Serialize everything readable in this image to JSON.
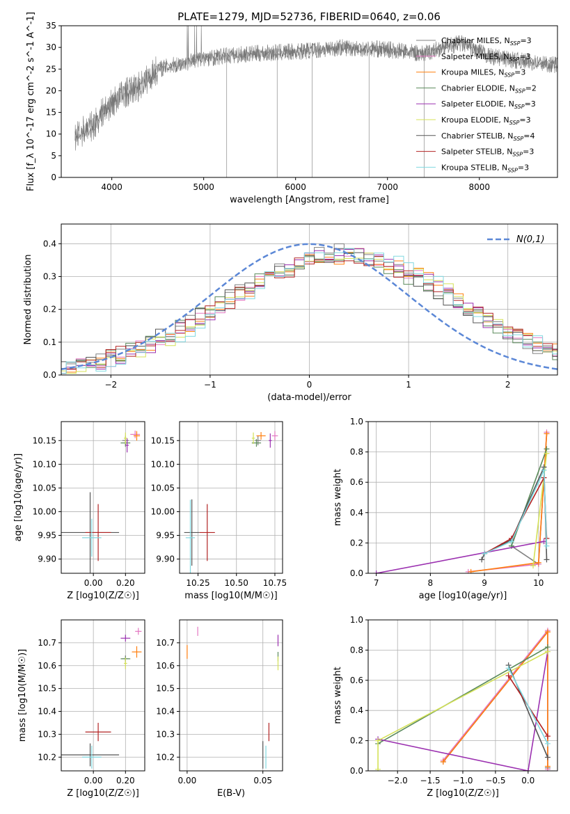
{
  "colors": {
    "Chabrier MILES": "#808080",
    "Salpeter MILES": "#e377c2",
    "Kroupa MILES": "#ff7f0e",
    "Chabrier ELODIE": "#5a8a5a",
    "Salpeter ELODIE": "#9b30b0",
    "Kroupa ELODIE": "#d4e157",
    "Chabrier STELIB": "#555555",
    "Salpeter STELIB": "#b22222",
    "Kroupa STELIB": "#80d8e0"
  },
  "chart_data": [
    {
      "id": "spectrum",
      "type": "line",
      "title": "PLATE=1279, MJD=52736, FIBERID=0640, z=0.06",
      "xlabel": "wavelength [Angstrom, rest frame]",
      "ylabel": "Flux [f_λ 10^-17 erg cm^-2 s^-1 A^-1]",
      "xlim": [
        3450,
        8850
      ],
      "ylim": [
        0,
        35
      ],
      "xticks": [
        4000,
        5000,
        6000,
        7000,
        8000
      ],
      "yticks": [
        0,
        5,
        10,
        15,
        20,
        25,
        30,
        35
      ],
      "grid": false,
      "legend_position": "right",
      "legend": [
        {
          "model": "Chabrier MILES",
          "n_ssp": "3"
        },
        {
          "model": "Salpeter MILES",
          "n_ssp": "3"
        },
        {
          "model": "Kroupa MILES",
          "n_ssp": "3"
        },
        {
          "model": "Chabrier ELODIE",
          "n_ssp": "2"
        },
        {
          "model": "Salpeter ELODIE",
          "n_ssp": "3"
        },
        {
          "model": "Kroupa ELODIE",
          "n_ssp": "3"
        },
        {
          "model": "Chabrier STELIB",
          "n_ssp": "4"
        },
        {
          "model": "Salpeter STELIB",
          "n_ssp": "3"
        },
        {
          "model": "Kroupa STELIB",
          "n_ssp": "3"
        }
      ],
      "continuum": [
        [
          3600,
          9
        ],
        [
          3700,
          11
        ],
        [
          3800,
          12
        ],
        [
          3900,
          15
        ],
        [
          4000,
          17
        ],
        [
          4100,
          19
        ],
        [
          4200,
          20
        ],
        [
          4300,
          21
        ],
        [
          4400,
          23
        ],
        [
          4500,
          25
        ],
        [
          4700,
          26
        ],
        [
          5000,
          27.5
        ],
        [
          5500,
          28.5
        ],
        [
          6000,
          29
        ],
        [
          6500,
          30
        ],
        [
          7000,
          29.5
        ],
        [
          7400,
          28.5
        ],
        [
          7600,
          30
        ],
        [
          7800,
          31
        ],
        [
          8100,
          28
        ],
        [
          8400,
          27
        ],
        [
          8800,
          26
        ]
      ],
      "telluric_drops": [
        5250,
        5800,
        6180,
        6800,
        7400
      ]
    },
    {
      "id": "residuals",
      "type": "histogram",
      "xlabel": "(data-model)/error",
      "ylabel": "Normed distribution",
      "xlim": [
        -2.5,
        2.5
      ],
      "ylim": [
        0,
        0.46
      ],
      "xticks": [
        -2,
        -1,
        0,
        1,
        2
      ],
      "yticks": [
        0.0,
        0.1,
        0.2,
        0.3,
        0.4
      ],
      "grid": true,
      "bin_width": 0.1,
      "gaussian_label": "N(0,1)",
      "gaussian_color": "#5b87d6",
      "peak_shift": 0.35,
      "peak_width": 1.15
    },
    {
      "id": "age_vs_Z",
      "type": "errorbar",
      "xlabel": "Z [log10(Z/Z☉)]",
      "ylabel": "age [log10(age/yr)]",
      "xlim": [
        -0.2,
        0.32
      ],
      "ylim": [
        9.87,
        10.19
      ],
      "xticks": [
        0.0,
        0.2
      ],
      "yticks": [
        9.9,
        9.95,
        10.0,
        10.05,
        10.1,
        10.15
      ],
      "grid": true,
      "points": [
        {
          "series": "Chabrier MILES",
          "x": 0.2,
          "y": 10.15,
          "xerr": 0.02,
          "yerr": 0.01
        },
        {
          "series": "Salpeter MILES",
          "x": 0.26,
          "y": 10.163,
          "xerr": 0.03,
          "yerr": 0.008
        },
        {
          "series": "Kroupa MILES",
          "x": 0.27,
          "y": 10.16,
          "xerr": 0.02,
          "yerr": 0.01
        },
        {
          "series": "Chabrier ELODIE",
          "x": 0.2,
          "y": 10.145,
          "xerr": 0.03,
          "yerr": 0.008
        },
        {
          "series": "Salpeter ELODIE",
          "x": 0.21,
          "y": 10.14,
          "xerr": 0.01,
          "yerr": 0.015
        },
        {
          "series": "Kroupa ELODIE",
          "x": 0.2,
          "y": 10.155,
          "xerr": 0.01,
          "yerr": 0.012
        },
        {
          "series": "Chabrier STELIB",
          "x": -0.02,
          "y": 9.956,
          "xerr": 0.18,
          "yerr": 0.085
        },
        {
          "series": "Salpeter STELIB",
          "x": 0.03,
          "y": 9.956,
          "xerr": 0.08,
          "yerr": 0.06
        },
        {
          "series": "Kroupa STELIB",
          "x": -0.01,
          "y": 9.945,
          "xerr": 0.06,
          "yerr": 0.04
        }
      ]
    },
    {
      "id": "age_vs_mass",
      "type": "errorbar",
      "xlabel": "mass [log10(M/M☉)]",
      "ylabel": "",
      "xlim": [
        10.13,
        10.8
      ],
      "ylim": [
        9.87,
        10.19
      ],
      "xticks": [
        10.25,
        10.5,
        10.75
      ],
      "yticks": [
        9.9,
        9.95,
        10.0,
        10.05,
        10.1,
        10.15
      ],
      "grid": true,
      "points": [
        {
          "series": "Chabrier MILES",
          "x": 10.64,
          "y": 10.15,
          "xerr": 0.02,
          "yerr": 0.01
        },
        {
          "series": "Salpeter MILES",
          "x": 10.75,
          "y": 10.16,
          "xerr": 0.02,
          "yerr": 0.01
        },
        {
          "series": "Kroupa MILES",
          "x": 10.66,
          "y": 10.16,
          "xerr": 0.03,
          "yerr": 0.008
        },
        {
          "series": "Chabrier ELODIE",
          "x": 10.63,
          "y": 10.145,
          "xerr": 0.03,
          "yerr": 0.008
        },
        {
          "series": "Salpeter ELODIE",
          "x": 10.72,
          "y": 10.15,
          "xerr": 0.01,
          "yerr": 0.015
        },
        {
          "series": "Kroupa ELODIE",
          "x": 10.61,
          "y": 10.155,
          "xerr": 0.01,
          "yerr": 0.012
        },
        {
          "series": "Chabrier STELIB",
          "x": 10.21,
          "y": 9.956,
          "xerr": 0.05,
          "yerr": 0.07
        },
        {
          "series": "Salpeter STELIB",
          "x": 10.31,
          "y": 9.956,
          "xerr": 0.05,
          "yerr": 0.06
        },
        {
          "series": "Kroupa STELIB",
          "x": 10.2,
          "y": 9.945,
          "xerr": 0.03,
          "yerr": 0.08
        }
      ]
    },
    {
      "id": "mass_weight_vs_age",
      "type": "line",
      "xlabel": "age [log10(age/yr)]",
      "ylabel": "mass weight",
      "xlim": [
        6.85,
        10.35
      ],
      "ylim": [
        0,
        1.0
      ],
      "xticks": [
        7,
        8,
        9,
        10
      ],
      "yticks": [
        0.0,
        0.2,
        0.4,
        0.6,
        0.8,
        1.0
      ],
      "grid": true,
      "series": [
        {
          "name": "Chabrier MILES",
          "points": [
            [
              9.5,
              0.18
            ],
            [
              10.0,
              0.06
            ],
            [
              10.15,
              0.92
            ]
          ]
        },
        {
          "name": "Salpeter MILES",
          "points": [
            [
              8.7,
              0.01
            ],
            [
              10.0,
              0.06
            ],
            [
              10.15,
              0.93
            ]
          ]
        },
        {
          "name": "Kroupa MILES",
          "points": [
            [
              8.75,
              0.01
            ],
            [
              10.0,
              0.07
            ],
            [
              10.15,
              0.92
            ]
          ]
        },
        {
          "name": "Chabrier ELODIE",
          "points": [
            [
              9.5,
              0.18
            ],
            [
              10.15,
              0.82
            ]
          ]
        },
        {
          "name": "Salpeter ELODIE",
          "points": [
            [
              7.0,
              0.0
            ],
            [
              10.1,
              0.21
            ]
          ]
        },
        {
          "name": "Kroupa ELODIE",
          "points": [
            [
              9.9,
              0.05
            ],
            [
              10.15,
              0.79
            ]
          ]
        },
        {
          "name": "Chabrier STELIB",
          "points": [
            [
              8.95,
              0.09
            ],
            [
              9.0,
              0.13
            ],
            [
              9.5,
              0.22
            ],
            [
              10.1,
              0.7
            ],
            [
              10.15,
              0.09
            ]
          ]
        },
        {
          "name": "Salpeter STELIB",
          "points": [
            [
              9.0,
              0.13
            ],
            [
              9.5,
              0.23
            ],
            [
              10.1,
              0.63
            ],
            [
              10.15,
              0.23
            ]
          ]
        },
        {
          "name": "Kroupa STELIB",
          "points": [
            [
              9.0,
              0.13
            ],
            [
              9.5,
              0.21
            ],
            [
              10.1,
              0.68
            ],
            [
              10.15,
              0.18
            ]
          ]
        }
      ]
    },
    {
      "id": "mass_vs_Z",
      "type": "errorbar",
      "xlabel": "Z [log10(Z/Z☉)]",
      "ylabel": "mass [log10(M/M☉)]",
      "xlim": [
        -0.2,
        0.32
      ],
      "ylim": [
        10.14,
        10.8
      ],
      "xticks": [
        0.0,
        0.2
      ],
      "yticks": [
        10.2,
        10.3,
        10.4,
        10.5,
        10.6,
        10.7
      ],
      "grid": true,
      "points": [
        {
          "series": "Chabrier MILES",
          "x": 0.2,
          "y": 10.63,
          "xerr": 0.02,
          "yerr": 0.015
        },
        {
          "series": "Salpeter MILES",
          "x": 0.28,
          "y": 10.75,
          "xerr": 0.02,
          "yerr": 0.015
        },
        {
          "series": "Kroupa MILES",
          "x": 0.27,
          "y": 10.66,
          "xerr": 0.03,
          "yerr": 0.025
        },
        {
          "series": "Chabrier ELODIE",
          "x": 0.2,
          "y": 10.63,
          "xerr": 0.03,
          "yerr": 0.01
        },
        {
          "series": "Salpeter ELODIE",
          "x": 0.2,
          "y": 10.72,
          "xerr": 0.03,
          "yerr": 0.015
        },
        {
          "series": "Kroupa ELODIE",
          "x": 0.2,
          "y": 10.61,
          "xerr": 0.01,
          "yerr": 0.025
        },
        {
          "series": "Chabrier STELIB",
          "x": -0.02,
          "y": 10.21,
          "xerr": 0.18,
          "yerr": 0.05
        },
        {
          "series": "Salpeter STELIB",
          "x": 0.03,
          "y": 10.31,
          "xerr": 0.08,
          "yerr": 0.04
        },
        {
          "series": "Kroupa STELIB",
          "x": -0.01,
          "y": 10.2,
          "xerr": 0.06,
          "yerr": 0.05
        }
      ]
    },
    {
      "id": "mass_vs_ebv",
      "type": "errorbar",
      "xlabel": "E(B-V)",
      "ylabel": "",
      "xlim": [
        -0.005,
        0.063
      ],
      "ylim": [
        10.14,
        10.8
      ],
      "xticks": [
        0.0,
        0.05
      ],
      "yticks": [
        10.2,
        10.3,
        10.4,
        10.5,
        10.6,
        10.7
      ],
      "grid": true,
      "points": [
        {
          "series": "Salpeter MILES",
          "x": 0.007,
          "y": 10.75,
          "xerr": 0,
          "yerr": 0.02
        },
        {
          "series": "Kroupa MILES",
          "x": 0.0,
          "y": 10.66,
          "xerr": 0,
          "yerr": 0.03
        },
        {
          "series": "Salpeter ELODIE",
          "x": 0.06,
          "y": 10.71,
          "xerr": 0,
          "yerr": 0.025
        },
        {
          "series": "Chabrier ELODIE",
          "x": 0.06,
          "y": 10.64,
          "xerr": 0,
          "yerr": 0.02
        },
        {
          "series": "Kroupa ELODIE",
          "x": 0.06,
          "y": 10.61,
          "xerr": 0,
          "yerr": 0.03
        },
        {
          "series": "Chabrier STELIB",
          "x": 0.05,
          "y": 10.21,
          "xerr": 0,
          "yerr": 0.06
        },
        {
          "series": "Salpeter STELIB",
          "x": 0.054,
          "y": 10.31,
          "xerr": 0,
          "yerr": 0.04
        },
        {
          "series": "Kroupa STELIB",
          "x": 0.052,
          "y": 10.2,
          "xerr": 0,
          "yerr": 0.05
        }
      ]
    },
    {
      "id": "mass_weight_vs_Z",
      "type": "line",
      "xlabel": "Z [log10(Z/Z☉)]",
      "ylabel": "mass weight",
      "xlim": [
        -2.45,
        0.45
      ],
      "ylim": [
        0,
        1.0
      ],
      "xticks": [
        -2.0,
        -1.5,
        -1.0,
        -0.5,
        0.0
      ],
      "yticks": [
        0.0,
        0.2,
        0.4,
        0.6,
        0.8,
        1.0
      ],
      "grid": true,
      "series": [
        {
          "name": "Chabrier MILES",
          "points": [
            [
              -1.3,
              0.06
            ],
            [
              0.3,
              0.92
            ],
            [
              0.3,
              0.02
            ]
          ]
        },
        {
          "name": "Salpeter MILES",
          "points": [
            [
              -1.3,
              0.07
            ],
            [
              0.3,
              0.93
            ],
            [
              0.3,
              0.01
            ]
          ]
        },
        {
          "name": "Kroupa MILES",
          "points": [
            [
              -1.3,
              0.06
            ],
            [
              0.3,
              0.92
            ],
            [
              0.3,
              0.03
            ]
          ]
        },
        {
          "name": "Chabrier ELODIE",
          "points": [
            [
              -2.3,
              0.18
            ],
            [
              0.3,
              0.82
            ]
          ]
        },
        {
          "name": "Salpeter ELODIE",
          "points": [
            [
              -2.3,
              0.21
            ],
            [
              0.0,
              0.0
            ],
            [
              0.3,
              0.79
            ]
          ]
        },
        {
          "name": "Kroupa ELODIE",
          "points": [
            [
              -2.3,
              0.01
            ],
            [
              -2.3,
              0.2
            ],
            [
              0.3,
              0.79
            ]
          ]
        },
        {
          "name": "Chabrier STELIB",
          "points": [
            [
              -0.3,
              0.7
            ],
            [
              0.3,
              0.09
            ]
          ]
        },
        {
          "name": "Salpeter STELIB",
          "points": [
            [
              -0.3,
              0.63
            ],
            [
              0.3,
              0.23
            ]
          ]
        },
        {
          "name": "Kroupa STELIB",
          "points": [
            [
              -0.3,
              0.68
            ],
            [
              0.3,
              0.18
            ]
          ]
        }
      ]
    }
  ]
}
